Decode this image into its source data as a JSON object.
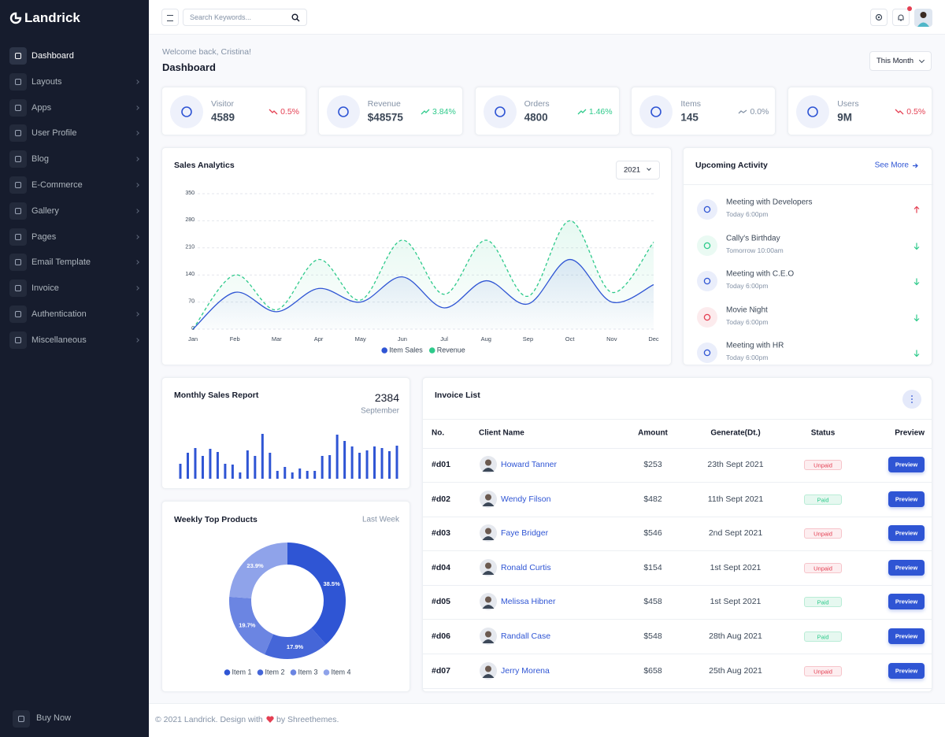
{
  "sidebar": {
    "brand": "Landrick",
    "active": 0,
    "menu": [
      "Dashboard",
      "Layouts",
      "Apps",
      "User Profile",
      "Blog",
      "E-Commerce",
      "Gallery",
      "Pages",
      "Email Template",
      "Invoice",
      "Authentication",
      "Miscellaneous"
    ],
    "footer": "Buy Now"
  },
  "topbar": {
    "search_placeholder": "Search Keywords..."
  },
  "header": {
    "welcome": "Welcome back, Cristina!",
    "title": "Dashboard",
    "period": "This Month"
  },
  "stats": [
    {
      "label": "Visitor",
      "value": "4589",
      "change": "0.5%",
      "trend": "down"
    },
    {
      "label": "Revenue",
      "value": "$48575",
      "change": "3.84%",
      "trend": "up"
    },
    {
      "label": "Orders",
      "value": "4800",
      "change": "1.46%",
      "trend": "up"
    },
    {
      "label": "Items",
      "value": "145",
      "change": "0.0%",
      "trend": "flat"
    },
    {
      "label": "Users",
      "value": "9M",
      "change": "0.5%",
      "trend": "down"
    }
  ],
  "chart_data": [
    {
      "type": "line",
      "title": "Sales Analytics",
      "period": "2021",
      "categories": [
        "Jan",
        "Feb",
        "Mar",
        "Apr",
        "May",
        "Jun",
        "Jul",
        "Aug",
        "Sep",
        "Oct",
        "Nov",
        "Dec"
      ],
      "ylim": [
        0,
        350
      ],
      "yticks": [
        0,
        70,
        140,
        210,
        280,
        350
      ],
      "grid": true,
      "series": [
        {
          "name": "Item Sales",
          "color": "#2f55d4",
          "dashed": false,
          "values": [
            0,
            95,
            45,
            105,
            70,
            135,
            55,
            125,
            65,
            180,
            70,
            115
          ]
        },
        {
          "name": "Revenue",
          "color": "#2eca8b",
          "dashed": true,
          "values": [
            0,
            140,
            50,
            180,
            75,
            230,
            90,
            230,
            85,
            280,
            95,
            225
          ]
        }
      ]
    },
    {
      "type": "bar",
      "title": "Monthly Sales Report",
      "total": 2384,
      "period": "September",
      "color": "#2f55d4",
      "ylim": [
        0,
        60
      ],
      "values": [
        19,
        33,
        39,
        29,
        38,
        34,
        19,
        18,
        8,
        36,
        29,
        57,
        33,
        10,
        15,
        8,
        13,
        10,
        10,
        29,
        30,
        56,
        48,
        41,
        33,
        36,
        41,
        39,
        35,
        42
      ]
    },
    {
      "type": "pie",
      "title": "Weekly Top Products",
      "period": "Last Week",
      "categories": [
        "Item 1",
        "Item 2",
        "Item 3",
        "Item 4"
      ],
      "values": [
        38.5,
        17.9,
        19.7,
        23.9
      ],
      "value_labels": [
        "38.5%",
        "17.9%",
        "19.7%",
        "23.9%"
      ],
      "colors": [
        "#2f55d4",
        "#4566d8",
        "#6b85e2",
        "#8fa3ea"
      ]
    }
  ],
  "activity": {
    "title": "Upcoming Activity",
    "link": "See More",
    "items": [
      {
        "title": "Meeting with Developers",
        "time": "Today 6:00pm",
        "direction": "up"
      },
      {
        "title": "Cally's Birthday",
        "time": "Tomorrow 10:00am",
        "direction": "down"
      },
      {
        "title": "Meeting with C.E.O",
        "time": "Today 6:00pm",
        "direction": "down"
      },
      {
        "title": "Movie Night",
        "time": "Today 6:00pm",
        "direction": "down"
      },
      {
        "title": "Meeting with HR",
        "time": "Today 6:00pm",
        "direction": "down"
      }
    ]
  },
  "invoices": {
    "title": "Invoice List",
    "columns": [
      "No.",
      "Client Name",
      "Amount",
      "Generate(Dt.)",
      "Status",
      "Preview"
    ],
    "button": "Preview",
    "rows": [
      {
        "no": "#d01",
        "client": "Howard Tanner",
        "amount": "$253",
        "date": "23th Sept 2021",
        "status": "Unpaid",
        "status_type": "danger"
      },
      {
        "no": "#d02",
        "client": "Wendy Filson",
        "amount": "$482",
        "date": "11th Sept 2021",
        "status": "Paid",
        "status_type": "success"
      },
      {
        "no": "#d03",
        "client": "Faye Bridger",
        "amount": "$546",
        "date": "2nd Sept 2021",
        "status": "Unpaid",
        "status_type": "danger"
      },
      {
        "no": "#d04",
        "client": "Ronald Curtis",
        "amount": "$154",
        "date": "1st Sept 2021",
        "status": "Unpaid",
        "status_type": "danger"
      },
      {
        "no": "#d05",
        "client": "Melissa Hibner",
        "amount": "$458",
        "date": "1st Sept 2021",
        "status": "Paid",
        "status_type": "success"
      },
      {
        "no": "#d06",
        "client": "Randall Case",
        "amount": "$548",
        "date": "28th Aug 2021",
        "status": "Paid",
        "status_type": "success"
      },
      {
        "no": "#d07",
        "client": "Jerry Morena",
        "amount": "$658",
        "date": "25th Aug 2021",
        "status": "Unpaid",
        "status_type": "danger"
      }
    ]
  },
  "footer": {
    "copyright": "© 2021 Landrick. Design with",
    "credit": "by Shreethemes."
  }
}
